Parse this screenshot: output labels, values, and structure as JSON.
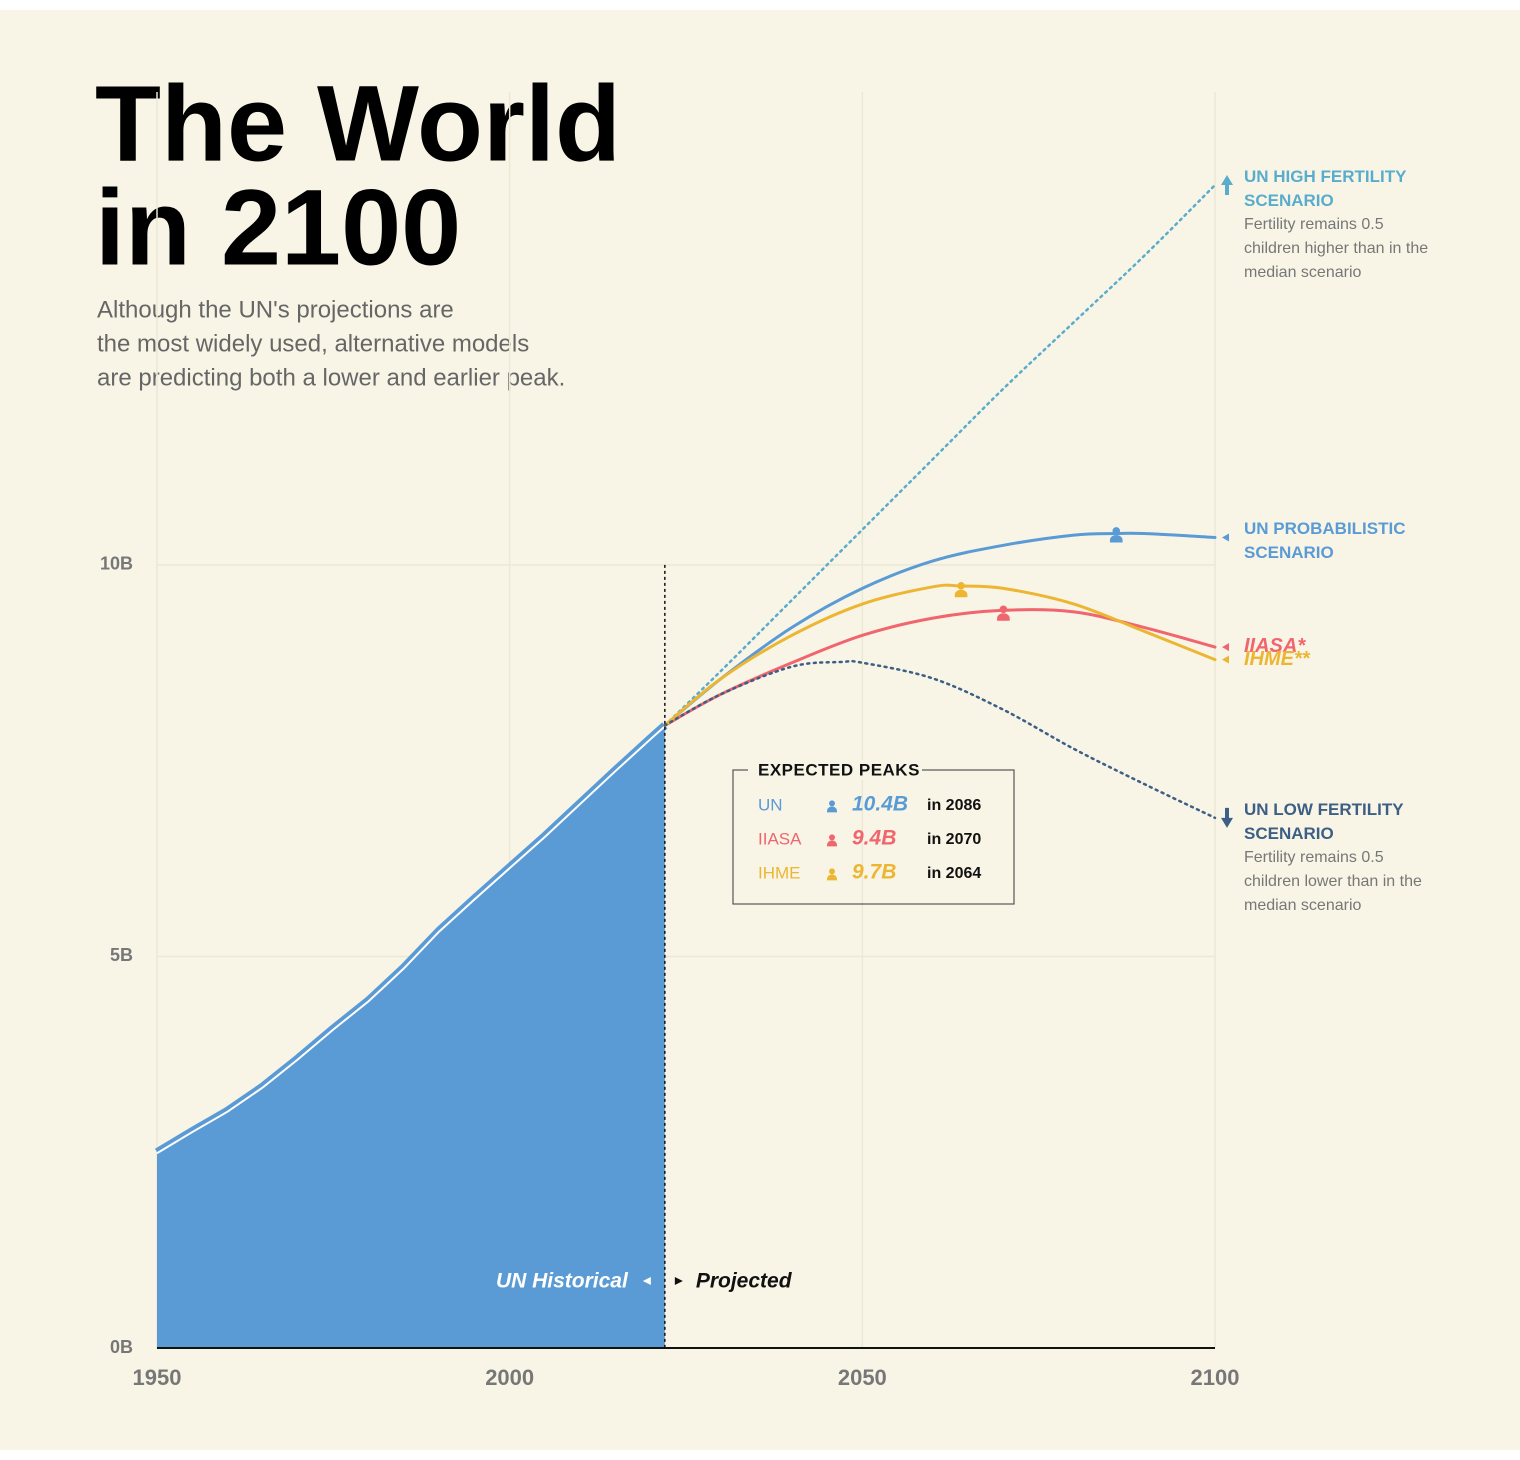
{
  "chart_data": {
    "type": "line",
    "title": [
      "The World",
      "in 2100"
    ],
    "subtitle": [
      "Although the UN's projections are",
      "the most widely used, alternative models",
      "are predicting both a lower and earlier peak."
    ],
    "xlim": [
      1950,
      2100
    ],
    "xticks": [
      1950,
      2000,
      2050,
      2100
    ],
    "ylim": [
      0,
      16
    ],
    "yticks": [
      {
        "value": 0,
        "label": "0B"
      },
      {
        "value": 5,
        "label": "5B"
      },
      {
        "value": 10,
        "label": "10B"
      }
    ],
    "grid": true,
    "projection_start": 2022,
    "projected_label": "Projected",
    "series": [
      {
        "name": "UN Historical",
        "color": "#5b9bd5",
        "style": "area",
        "x": [
          1950,
          1955,
          1960,
          1965,
          1970,
          1975,
          1980,
          1985,
          1990,
          1995,
          2000,
          2005,
          2010,
          2015,
          2020,
          2022
        ],
        "values": [
          2.5,
          2.77,
          3.03,
          3.34,
          3.7,
          4.08,
          4.44,
          4.86,
          5.33,
          5.74,
          6.14,
          6.54,
          6.96,
          7.38,
          7.79,
          7.95
        ]
      },
      {
        "name": "UN HIGH FERTILITY SCENARIO",
        "note": "Fertility remains 0.5 children higher than in the median scenario",
        "color": "#5aaccc",
        "style": "dotted",
        "x": [
          2022,
          2030,
          2040,
          2050,
          2060,
          2070,
          2080,
          2090,
          2100
        ],
        "values": [
          7.95,
          8.65,
          9.55,
          10.45,
          11.35,
          12.25,
          13.1,
          13.95,
          14.85
        ]
      },
      {
        "name": "UN PROBABILISTIC SCENARIO",
        "color": "#5b9bd5",
        "style": "solid",
        "x": [
          2022,
          2030,
          2040,
          2050,
          2060,
          2070,
          2080,
          2086,
          2090,
          2100
        ],
        "values": [
          7.95,
          8.55,
          9.2,
          9.7,
          10.05,
          10.25,
          10.38,
          10.4,
          10.4,
          10.35
        ]
      },
      {
        "name": "IIASA*",
        "color": "#f0656e",
        "style": "solid",
        "label_italic": true,
        "x": [
          2022,
          2030,
          2040,
          2050,
          2060,
          2070,
          2080,
          2090,
          2100
        ],
        "values": [
          7.95,
          8.35,
          8.75,
          9.1,
          9.32,
          9.42,
          9.4,
          9.2,
          8.95
        ]
      },
      {
        "name": "IHME**",
        "color": "#ecb632",
        "style": "solid",
        "label_italic": true,
        "x": [
          2022,
          2030,
          2040,
          2050,
          2060,
          2064,
          2070,
          2080,
          2090,
          2100
        ],
        "values": [
          7.95,
          8.55,
          9.1,
          9.5,
          9.72,
          9.73,
          9.7,
          9.5,
          9.15,
          8.79
        ]
      },
      {
        "name": "UN LOW FERTILITY SCENARIO",
        "note": "Fertility remains 0.5 children lower than in the median scenario",
        "color": "#3d5f86",
        "style": "dotted",
        "x": [
          2022,
          2030,
          2040,
          2047,
          2050,
          2060,
          2070,
          2080,
          2090,
          2100
        ],
        "values": [
          7.95,
          8.35,
          8.7,
          8.76,
          8.75,
          8.55,
          8.15,
          7.65,
          7.2,
          6.77
        ]
      }
    ],
    "peaks": {
      "title": "EXPECTED PEAKS",
      "rows": [
        {
          "model": "UN",
          "value": 10.4,
          "label": "10.4B",
          "year": 2086,
          "year_label": "in 2086",
          "color": "#5b9bd5"
        },
        {
          "model": "IIASA",
          "value": 9.4,
          "label": "9.4B",
          "year": 2070,
          "year_label": "in 2070",
          "color": "#f0656e"
        },
        {
          "model": "IHME",
          "value": 9.7,
          "label": "9.7B",
          "year": 2064,
          "year_label": "in 2064",
          "color": "#ecb632"
        }
      ]
    }
  }
}
